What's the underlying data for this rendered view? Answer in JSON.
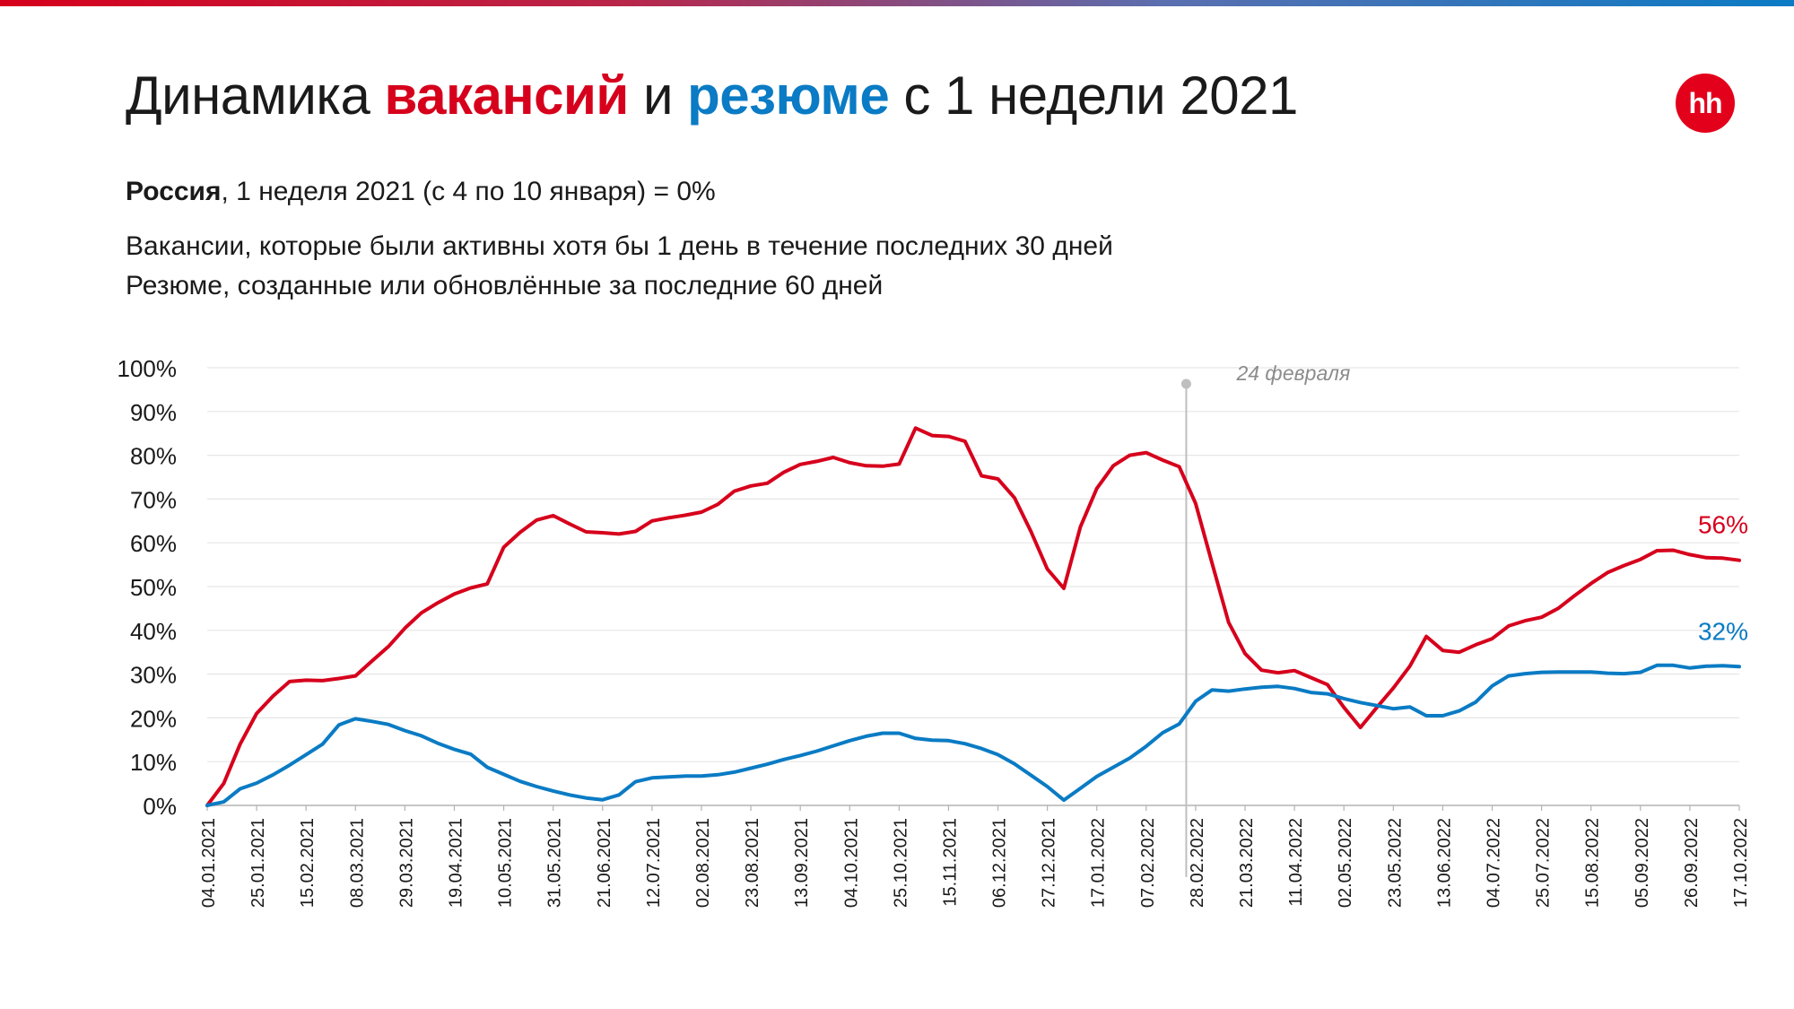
{
  "header": {
    "title_part1": "Динамика ",
    "title_vac": "вакансий",
    "title_part2": " и ",
    "title_res": "резюме",
    "title_part3": " с 1 недели 2021",
    "logo_text": "hh",
    "subtitle_bold": "Россия",
    "subtitle_rest": ", 1 неделя 2021 (с 4 по 10 января) = 0%",
    "desc_line1": "Вакансии, которые были активны хотя бы 1 день в течение последних 30 дней",
    "desc_line2": "Резюме, созданные или обновлённые за последние 60 дней"
  },
  "colors": {
    "vacancies": "#d6001c",
    "resumes": "#0a7bc4",
    "grid": "#e6e6e6",
    "axis": "#b3b3b3",
    "event_line": "#bfbfbf",
    "event_label": "#8c8c8c"
  },
  "chart_data": {
    "type": "line",
    "ylim": [
      0,
      100
    ],
    "yticks": [
      "0%",
      "10%",
      "20%",
      "30%",
      "40%",
      "50%",
      "60%",
      "70%",
      "80%",
      "90%",
      "100%"
    ],
    "x_tick_labels": [
      "04.01.2021",
      "25.01.2021",
      "15.02.2021",
      "08.03.2021",
      "29.03.2021",
      "19.04.2021",
      "10.05.2021",
      "31.05.2021",
      "21.06.2021",
      "12.07.2021",
      "02.08.2021",
      "23.08.2021",
      "13.09.2021",
      "04.10.2021",
      "25.10.2021",
      "15.11.2021",
      "06.12.2021",
      "27.12.2021",
      "17.01.2022",
      "07.02.2022",
      "28.02.2022",
      "21.03.2022",
      "11.04.2022",
      "02.05.2022",
      "23.05.2022",
      "13.06.2022",
      "04.07.2022",
      "25.07.2022",
      "15.08.2022",
      "05.09.2022",
      "26.09.2022",
      "17.10.2022"
    ],
    "x_start": "04.01.2021",
    "x_end": "17.10.2022",
    "grid": true,
    "event": {
      "date": "24.02.2022",
      "label": "24 февраля"
    },
    "series": [
      {
        "key": "vacancies",
        "end_label": "56%",
        "points": [
          [
            "04.01.2021",
            0
          ],
          [
            "11.01.2021",
            5
          ],
          [
            "18.01.2021",
            14
          ],
          [
            "25.01.2021",
            21
          ],
          [
            "01.02.2021",
            25
          ],
          [
            "08.02.2021",
            28.3
          ],
          [
            "15.02.2021",
            28.6
          ],
          [
            "22.02.2021",
            28.5
          ],
          [
            "01.03.2021",
            29
          ],
          [
            "08.03.2021",
            29.6
          ],
          [
            "15.03.2021",
            33
          ],
          [
            "22.03.2021",
            36.3
          ],
          [
            "29.03.2021",
            40.5
          ],
          [
            "05.04.2021",
            44
          ],
          [
            "12.04.2021",
            46.3
          ],
          [
            "19.04.2021",
            48.3
          ],
          [
            "26.04.2021",
            49.7
          ],
          [
            "03.05.2021",
            50.6
          ],
          [
            "10.05.2021",
            59
          ],
          [
            "17.05.2021",
            62.4
          ],
          [
            "24.05.2021",
            65.2
          ],
          [
            "31.05.2021",
            66.2
          ],
          [
            "07.06.2021",
            64.3
          ],
          [
            "14.06.2021",
            62.5
          ],
          [
            "21.06.2021",
            62.3
          ],
          [
            "28.06.2021",
            62
          ],
          [
            "05.07.2021",
            62.6
          ],
          [
            "12.07.2021",
            65
          ],
          [
            "19.07.2021",
            65.7
          ],
          [
            "26.07.2021",
            66.3
          ],
          [
            "02.08.2021",
            67
          ],
          [
            "09.08.2021",
            68.8
          ],
          [
            "16.08.2021",
            71.8
          ],
          [
            "23.08.2021",
            73
          ],
          [
            "30.08.2021",
            73.6
          ],
          [
            "06.09.2021",
            76.1
          ],
          [
            "13.09.2021",
            77.9
          ],
          [
            "20.09.2021",
            78.6
          ],
          [
            "27.09.2021",
            79.5
          ],
          [
            "04.10.2021",
            78.3
          ],
          [
            "11.10.2021",
            77.6
          ],
          [
            "18.10.2021",
            77.5
          ],
          [
            "25.10.2021",
            78
          ],
          [
            "01.11.2021",
            86.2
          ],
          [
            "08.11.2021",
            84.5
          ],
          [
            "15.11.2021",
            84.3
          ],
          [
            "22.11.2021",
            83.2
          ],
          [
            "29.11.2021",
            75.3
          ],
          [
            "06.12.2021",
            74.6
          ],
          [
            "13.12.2021",
            70.3
          ],
          [
            "20.12.2021",
            62.6
          ],
          [
            "27.12.2021",
            54
          ],
          [
            "03.01.2022",
            49.6
          ],
          [
            "10.01.2022",
            63.6
          ],
          [
            "17.01.2022",
            72.4
          ],
          [
            "24.01.2022",
            77.6
          ],
          [
            "31.01.2022",
            80
          ],
          [
            "07.02.2022",
            80.6
          ],
          [
            "14.02.2022",
            78.9
          ],
          [
            "21.02.2022",
            77.4
          ],
          [
            "28.02.2022",
            69
          ],
          [
            "07.03.2022",
            55.3
          ],
          [
            "14.03.2022",
            41.8
          ],
          [
            "21.03.2022",
            34.7
          ],
          [
            "28.03.2022",
            30.9
          ],
          [
            "04.04.2022",
            30.3
          ],
          [
            "11.04.2022",
            30.8
          ],
          [
            "18.04.2022",
            29.2
          ],
          [
            "25.04.2022",
            27.6
          ],
          [
            "02.05.2022",
            22.4
          ],
          [
            "09.05.2022",
            17.8
          ],
          [
            "16.05.2022",
            22.4
          ],
          [
            "23.05.2022",
            26.8
          ],
          [
            "30.05.2022",
            31.8
          ],
          [
            "06.06.2022",
            38.6
          ],
          [
            "13.06.2022",
            35.4
          ],
          [
            "20.06.2022",
            35
          ],
          [
            "27.06.2022",
            36.7
          ],
          [
            "04.07.2022",
            38.1
          ],
          [
            "11.07.2022",
            41
          ],
          [
            "18.07.2022",
            42.2
          ],
          [
            "25.07.2022",
            43
          ],
          [
            "01.08.2022",
            45
          ],
          [
            "08.08.2022",
            47.9
          ],
          [
            "15.08.2022",
            50.7
          ],
          [
            "22.08.2022",
            53.2
          ],
          [
            "29.08.2022",
            54.8
          ],
          [
            "05.09.2022",
            56.2
          ],
          [
            "12.09.2022",
            58.2
          ],
          [
            "19.09.2022",
            58.3
          ],
          [
            "26.09.2022",
            57.3
          ],
          [
            "03.10.2022",
            56.6
          ],
          [
            "10.10.2022",
            56.5
          ],
          [
            "17.10.2022",
            56
          ]
        ]
      },
      {
        "key": "resumes",
        "end_label": "32%",
        "points": [
          [
            "04.01.2021",
            0
          ],
          [
            "11.01.2021",
            0.8
          ],
          [
            "18.01.2021",
            3.8
          ],
          [
            "25.01.2021",
            5.1
          ],
          [
            "01.02.2021",
            7
          ],
          [
            "08.02.2021",
            9.2
          ],
          [
            "15.02.2021",
            11.6
          ],
          [
            "22.02.2021",
            14
          ],
          [
            "01.03.2021",
            18.4
          ],
          [
            "08.03.2021",
            19.8
          ],
          [
            "15.03.2021",
            19.2
          ],
          [
            "22.03.2021",
            18.5
          ],
          [
            "29.03.2021",
            17.1
          ],
          [
            "05.04.2021",
            15.9
          ],
          [
            "12.04.2021",
            14.2
          ],
          [
            "19.04.2021",
            12.8
          ],
          [
            "26.04.2021",
            11.7
          ],
          [
            "03.05.2021",
            8.7
          ],
          [
            "10.05.2021",
            7.1
          ],
          [
            "17.05.2021",
            5.5
          ],
          [
            "24.05.2021",
            4.3
          ],
          [
            "31.05.2021",
            3.3
          ],
          [
            "07.06.2021",
            2.4
          ],
          [
            "14.06.2021",
            1.7
          ],
          [
            "21.06.2021",
            1.3
          ],
          [
            "28.06.2021",
            2.4
          ],
          [
            "05.07.2021",
            5.4
          ],
          [
            "12.07.2021",
            6.3
          ],
          [
            "19.07.2021",
            6.5
          ],
          [
            "26.07.2021",
            6.7
          ],
          [
            "02.08.2021",
            6.7
          ],
          [
            "09.08.2021",
            7
          ],
          [
            "16.08.2021",
            7.6
          ],
          [
            "23.08.2021",
            8.5
          ],
          [
            "30.08.2021",
            9.4
          ],
          [
            "06.09.2021",
            10.5
          ],
          [
            "13.09.2021",
            11.4
          ],
          [
            "20.09.2021",
            12.4
          ],
          [
            "27.09.2021",
            13.6
          ],
          [
            "04.10.2021",
            14.8
          ],
          [
            "11.10.2021",
            15.8
          ],
          [
            "18.10.2021",
            16.5
          ],
          [
            "25.10.2021",
            16.5
          ],
          [
            "01.11.2021",
            15.3
          ],
          [
            "08.11.2021",
            14.9
          ],
          [
            "15.11.2021",
            14.8
          ],
          [
            "22.11.2021",
            14.1
          ],
          [
            "29.11.2021",
            13
          ],
          [
            "06.12.2021",
            11.6
          ],
          [
            "13.12.2021",
            9.5
          ],
          [
            "20.12.2021",
            6.9
          ],
          [
            "27.12.2021",
            4.3
          ],
          [
            "03.01.2022",
            1.2
          ],
          [
            "10.01.2022",
            3.9
          ],
          [
            "17.01.2022",
            6.6
          ],
          [
            "24.01.2022",
            8.7
          ],
          [
            "31.01.2022",
            10.8
          ],
          [
            "07.02.2022",
            13.5
          ],
          [
            "14.02.2022",
            16.6
          ],
          [
            "21.02.2022",
            18.6
          ],
          [
            "28.02.2022",
            23.8
          ],
          [
            "07.03.2022",
            26.4
          ],
          [
            "14.03.2022",
            26.1
          ],
          [
            "21.03.2022",
            26.6
          ],
          [
            "28.03.2022",
            27
          ],
          [
            "04.04.2022",
            27.2
          ],
          [
            "11.04.2022",
            26.7
          ],
          [
            "18.04.2022",
            25.8
          ],
          [
            "25.04.2022",
            25.5
          ],
          [
            "02.05.2022",
            24.4
          ],
          [
            "09.05.2022",
            23.5
          ],
          [
            "16.05.2022",
            22.8
          ],
          [
            "23.05.2022",
            22.1
          ],
          [
            "30.05.2022",
            22.5
          ],
          [
            "06.06.2022",
            20.5
          ],
          [
            "13.06.2022",
            20.5
          ],
          [
            "20.06.2022",
            21.6
          ],
          [
            "27.06.2022",
            23.6
          ],
          [
            "04.07.2022",
            27.3
          ],
          [
            "11.07.2022",
            29.6
          ],
          [
            "18.07.2022",
            30.1
          ],
          [
            "25.07.2022",
            30.4
          ],
          [
            "01.08.2022",
            30.5
          ],
          [
            "08.08.2022",
            30.5
          ],
          [
            "15.08.2022",
            30.5
          ],
          [
            "22.08.2022",
            30.2
          ],
          [
            "29.08.2022",
            30.1
          ],
          [
            "05.09.2022",
            30.4
          ],
          [
            "12.09.2022",
            32
          ],
          [
            "19.09.2022",
            32
          ],
          [
            "26.09.2022",
            31.4
          ],
          [
            "03.10.2022",
            31.8
          ],
          [
            "10.10.2022",
            31.9
          ],
          [
            "17.10.2022",
            31.7
          ]
        ]
      }
    ]
  }
}
